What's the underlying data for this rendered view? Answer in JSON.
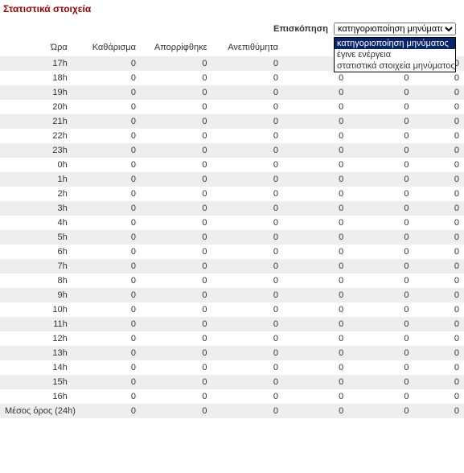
{
  "title": "Στατιστικά στοιχεία",
  "overview": {
    "label": "Επισκόπηση",
    "selected": "κατηγοριοποίηση μηνύματος",
    "options": [
      "κατηγοριοποίηση μηνύματος",
      "έγινε ενέργεια",
      "στατιστικά στοιχεία μηνύματος"
    ]
  },
  "columns": {
    "hour": "Ώρα",
    "clean": "Καθάρισμα",
    "rejected": "Απορρίφθηκε",
    "spam": "Ανεπιθύμητα",
    "col5": "",
    "col6": "",
    "col7": ""
  },
  "rows": [
    {
      "hour": "17h",
      "c1": "0",
      "c2": "0",
      "c3": "0",
      "c4": "0",
      "c5": "0",
      "c6": "0"
    },
    {
      "hour": "18h",
      "c1": "0",
      "c2": "0",
      "c3": "0",
      "c4": "0",
      "c5": "0",
      "c6": "0"
    },
    {
      "hour": "19h",
      "c1": "0",
      "c2": "0",
      "c3": "0",
      "c4": "0",
      "c5": "0",
      "c6": "0"
    },
    {
      "hour": "20h",
      "c1": "0",
      "c2": "0",
      "c3": "0",
      "c4": "0",
      "c5": "0",
      "c6": "0"
    },
    {
      "hour": "21h",
      "c1": "0",
      "c2": "0",
      "c3": "0",
      "c4": "0",
      "c5": "0",
      "c6": "0"
    },
    {
      "hour": "22h",
      "c1": "0",
      "c2": "0",
      "c3": "0",
      "c4": "0",
      "c5": "0",
      "c6": "0"
    },
    {
      "hour": "23h",
      "c1": "0",
      "c2": "0",
      "c3": "0",
      "c4": "0",
      "c5": "0",
      "c6": "0"
    },
    {
      "hour": "0h",
      "c1": "0",
      "c2": "0",
      "c3": "0",
      "c4": "0",
      "c5": "0",
      "c6": "0"
    },
    {
      "hour": "1h",
      "c1": "0",
      "c2": "0",
      "c3": "0",
      "c4": "0",
      "c5": "0",
      "c6": "0"
    },
    {
      "hour": "2h",
      "c1": "0",
      "c2": "0",
      "c3": "0",
      "c4": "0",
      "c5": "0",
      "c6": "0"
    },
    {
      "hour": "3h",
      "c1": "0",
      "c2": "0",
      "c3": "0",
      "c4": "0",
      "c5": "0",
      "c6": "0"
    },
    {
      "hour": "4h",
      "c1": "0",
      "c2": "0",
      "c3": "0",
      "c4": "0",
      "c5": "0",
      "c6": "0"
    },
    {
      "hour": "5h",
      "c1": "0",
      "c2": "0",
      "c3": "0",
      "c4": "0",
      "c5": "0",
      "c6": "0"
    },
    {
      "hour": "6h",
      "c1": "0",
      "c2": "0",
      "c3": "0",
      "c4": "0",
      "c5": "0",
      "c6": "0"
    },
    {
      "hour": "7h",
      "c1": "0",
      "c2": "0",
      "c3": "0",
      "c4": "0",
      "c5": "0",
      "c6": "0"
    },
    {
      "hour": "8h",
      "c1": "0",
      "c2": "0",
      "c3": "0",
      "c4": "0",
      "c5": "0",
      "c6": "0"
    },
    {
      "hour": "9h",
      "c1": "0",
      "c2": "0",
      "c3": "0",
      "c4": "0",
      "c5": "0",
      "c6": "0"
    },
    {
      "hour": "10h",
      "c1": "0",
      "c2": "0",
      "c3": "0",
      "c4": "0",
      "c5": "0",
      "c6": "0"
    },
    {
      "hour": "11h",
      "c1": "0",
      "c2": "0",
      "c3": "0",
      "c4": "0",
      "c5": "0",
      "c6": "0"
    },
    {
      "hour": "12h",
      "c1": "0",
      "c2": "0",
      "c3": "0",
      "c4": "0",
      "c5": "0",
      "c6": "0"
    },
    {
      "hour": "13h",
      "c1": "0",
      "c2": "0",
      "c3": "0",
      "c4": "0",
      "c5": "0",
      "c6": "0"
    },
    {
      "hour": "14h",
      "c1": "0",
      "c2": "0",
      "c3": "0",
      "c4": "0",
      "c5": "0",
      "c6": "0"
    },
    {
      "hour": "15h",
      "c1": "0",
      "c2": "0",
      "c3": "0",
      "c4": "0",
      "c5": "0",
      "c6": "0"
    },
    {
      "hour": "16h",
      "c1": "0",
      "c2": "0",
      "c3": "0",
      "c4": "0",
      "c5": "0",
      "c6": "0"
    },
    {
      "hour": "Μέσος όρος (24h)",
      "c1": "0",
      "c2": "0",
      "c3": "0",
      "c4": "0",
      "c5": "0",
      "c6": "0"
    }
  ]
}
